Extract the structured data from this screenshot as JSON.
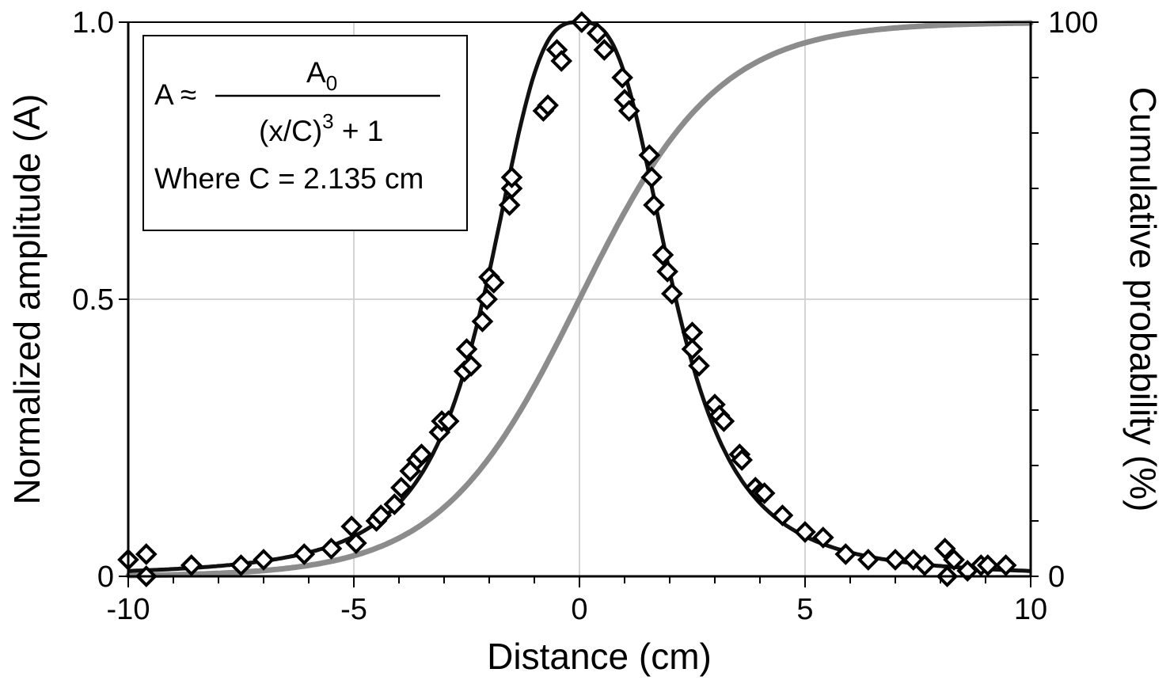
{
  "chart_data": {
    "type": "scatter",
    "xlabel": "Distance (cm)",
    "ylabel": "Normalized amplitude (A)",
    "y2label": "Cumulative probability (%)",
    "xlim": [
      -10,
      10
    ],
    "ylim": [
      0,
      1
    ],
    "y2lim": [
      0,
      100
    ],
    "x_ticks": [
      {
        "v": -10,
        "label": "-10"
      },
      {
        "v": -5,
        "label": "-5"
      },
      {
        "v": 0,
        "label": "0"
      },
      {
        "v": 5,
        "label": "5"
      },
      {
        "v": 10,
        "label": "10"
      }
    ],
    "y_ticks": [
      {
        "v": 0,
        "label": "0"
      },
      {
        "v": 0.5,
        "label": "0.5"
      },
      {
        "v": 1.0,
        "label": "1.0"
      }
    ],
    "y2_ticks": [
      {
        "v": 0,
        "label": "0"
      },
      {
        "v": 100,
        "label": "100"
      }
    ],
    "grid": true,
    "annotation": {
      "lhs": "A ≈",
      "numerator_base": "A",
      "numerator_sub": "0",
      "denominator_base": "(x/C)",
      "denominator_sup": "3",
      "denominator_tail": " + 1",
      "where": "Where C = 2.135 cm"
    },
    "fit_C": 2.135,
    "fit_color": "#111111",
    "cumulative_color": "#8c8c8c",
    "points": [
      [
        -10.0,
        0.03
      ],
      [
        -9.6,
        0.04
      ],
      [
        -9.6,
        0.0
      ],
      [
        -8.6,
        0.02
      ],
      [
        -7.5,
        0.02
      ],
      [
        -7.0,
        0.03
      ],
      [
        -6.1,
        0.04
      ],
      [
        -5.5,
        0.05
      ],
      [
        -5.05,
        0.09
      ],
      [
        -4.95,
        0.06
      ],
      [
        -4.5,
        0.1
      ],
      [
        -4.4,
        0.11
      ],
      [
        -4.1,
        0.13
      ],
      [
        -3.95,
        0.16
      ],
      [
        -3.75,
        0.19
      ],
      [
        -3.6,
        0.21
      ],
      [
        -3.5,
        0.22
      ],
      [
        -3.1,
        0.26
      ],
      [
        -3.05,
        0.28
      ],
      [
        -2.9,
        0.28
      ],
      [
        -2.55,
        0.37
      ],
      [
        -2.5,
        0.41
      ],
      [
        -2.4,
        0.38
      ],
      [
        -2.15,
        0.46
      ],
      [
        -2.05,
        0.5
      ],
      [
        -2.0,
        0.54
      ],
      [
        -1.9,
        0.53
      ],
      [
        -1.55,
        0.67
      ],
      [
        -1.5,
        0.7
      ],
      [
        -1.5,
        0.72
      ],
      [
        -0.8,
        0.84
      ],
      [
        -0.7,
        0.85
      ],
      [
        -0.5,
        0.95
      ],
      [
        -0.4,
        0.93
      ],
      [
        0.05,
        1.0
      ],
      [
        0.4,
        0.98
      ],
      [
        0.55,
        0.95
      ],
      [
        0.95,
        0.9
      ],
      [
        1.0,
        0.86
      ],
      [
        1.1,
        0.84
      ],
      [
        1.55,
        0.76
      ],
      [
        1.6,
        0.72
      ],
      [
        1.65,
        0.67
      ],
      [
        1.85,
        0.58
      ],
      [
        1.95,
        0.55
      ],
      [
        2.05,
        0.51
      ],
      [
        2.5,
        0.44
      ],
      [
        2.5,
        0.41
      ],
      [
        2.65,
        0.38
      ],
      [
        3.0,
        0.31
      ],
      [
        3.1,
        0.29
      ],
      [
        3.2,
        0.28
      ],
      [
        3.55,
        0.22
      ],
      [
        3.6,
        0.21
      ],
      [
        3.9,
        0.16
      ],
      [
        4.0,
        0.15
      ],
      [
        4.1,
        0.15
      ],
      [
        4.5,
        0.11
      ],
      [
        5.0,
        0.08
      ],
      [
        5.4,
        0.07
      ],
      [
        5.9,
        0.04
      ],
      [
        6.4,
        0.03
      ],
      [
        7.0,
        0.03
      ],
      [
        7.4,
        0.03
      ],
      [
        7.65,
        0.02
      ],
      [
        8.1,
        0.05
      ],
      [
        8.15,
        0.0
      ],
      [
        8.3,
        0.03
      ],
      [
        8.6,
        0.01
      ],
      [
        8.9,
        0.02
      ],
      [
        9.05,
        0.02
      ],
      [
        9.45,
        0.02
      ]
    ]
  }
}
